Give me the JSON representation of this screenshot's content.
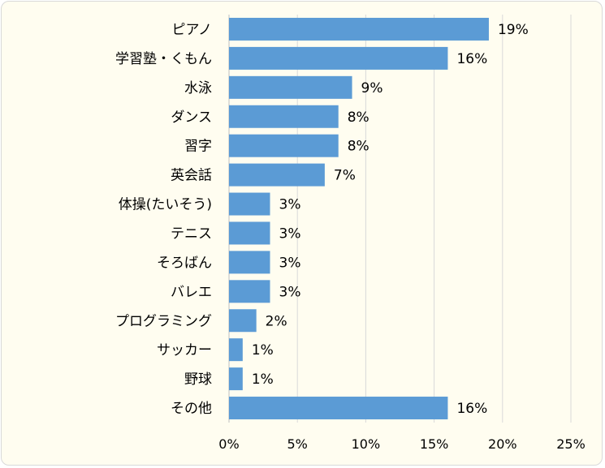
{
  "chart_data": {
    "type": "bar",
    "orientation": "horizontal",
    "categories": [
      "ピアノ",
      "学習塾・くもん",
      "水泳",
      "ダンス",
      "習字",
      "英会話",
      "体操(たいそう)",
      "テニス",
      "そろばん",
      "バレエ",
      "プログラミング",
      "サッカー",
      "野球",
      "その他"
    ],
    "values": [
      19,
      16,
      9,
      8,
      8,
      7,
      3,
      3,
      3,
      3,
      2,
      1,
      1,
      16
    ],
    "value_labels": [
      "19%",
      "16%",
      "9%",
      "8%",
      "8%",
      "7%",
      "3%",
      "3%",
      "3%",
      "3%",
      "2%",
      "1%",
      "1%",
      "16%"
    ],
    "x_ticks": [
      "0%",
      "5%",
      "10%",
      "15%",
      "20%",
      "25%"
    ],
    "xlim": [
      0,
      25
    ],
    "grid": "vertical",
    "bar_color": "#5b9bd5",
    "grid_color": "#d9d9d9",
    "background_color": "#fffdf0"
  }
}
